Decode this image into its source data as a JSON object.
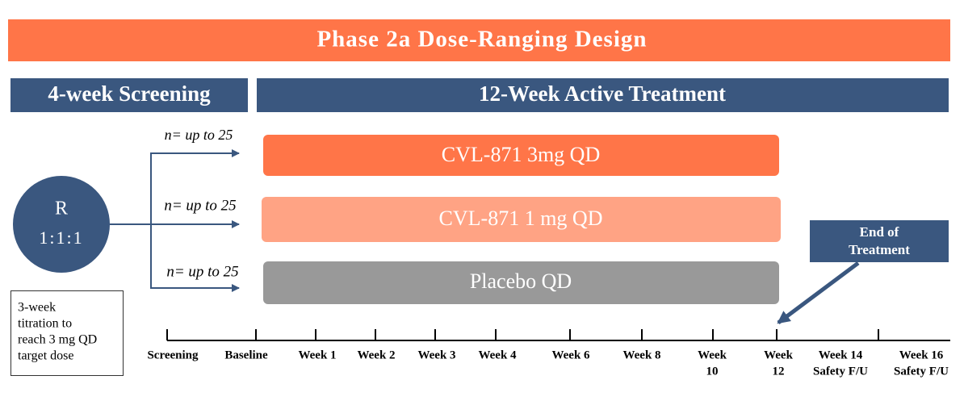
{
  "header": {
    "title": "Phase 2a Dose-Ranging Design"
  },
  "phases": [
    "4-week Screening",
    "12-Week Active Treatment"
  ],
  "randomization": {
    "label": "R",
    "ratio": "1:1:1"
  },
  "arms": [
    {
      "n": "n= up to 25",
      "label": "CVL-871 3mg QD"
    },
    {
      "n": "n= up to 25",
      "label": "CVL-871 1 mg QD"
    },
    {
      "n": "n= up to 25",
      "label": "Placebo QD"
    }
  ],
  "callout": [
    "End of",
    "Treatment"
  ],
  "note": [
    "3-week",
    "titration to",
    "reach 3 mg QD",
    "target dose"
  ],
  "timeline": [
    [
      "Screening"
    ],
    [
      "Baseline"
    ],
    [
      "Week 1"
    ],
    [
      "Week 2"
    ],
    [
      "Week 3"
    ],
    [
      "Week 4"
    ],
    [
      "Week 6"
    ],
    [
      "Week 8"
    ],
    [
      "Week",
      "10"
    ],
    [
      "Week",
      "12"
    ],
    [
      "Week 14",
      "Safety F/U"
    ],
    [
      "Week 16",
      "Safety F/U"
    ]
  ]
}
